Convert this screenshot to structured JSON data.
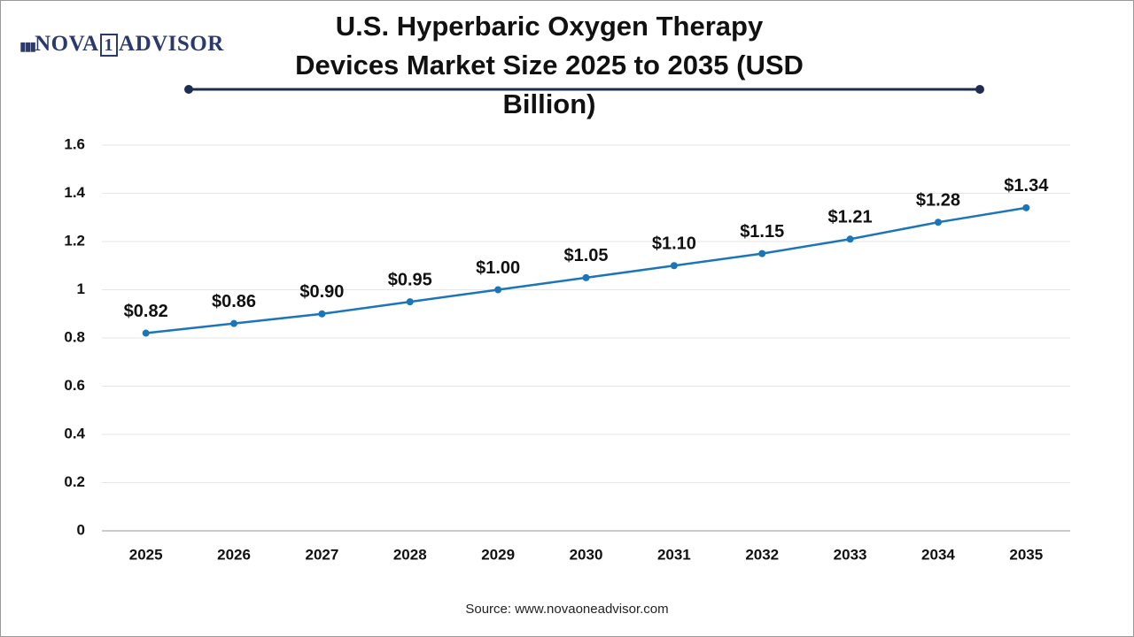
{
  "logo": {
    "left": "NOVA",
    "mid": "1",
    "right": "ADVISOR"
  },
  "chart_data": {
    "type": "line",
    "title": "U.S. Hyperbaric Oxygen Therapy Devices Market Size 2025 to 2035 (USD Billion)",
    "categories": [
      "2025",
      "2026",
      "2027",
      "2028",
      "2029",
      "2030",
      "2031",
      "2032",
      "2033",
      "2034",
      "2035"
    ],
    "values": [
      0.82,
      0.86,
      0.9,
      0.95,
      1.0,
      1.05,
      1.1,
      1.15,
      1.21,
      1.28,
      1.34
    ],
    "value_labels": [
      "$0.82",
      "$0.86",
      "$0.90",
      "$0.95",
      "$1.00",
      "$1.05",
      "$1.10",
      "$1.15",
      "$1.21",
      "$1.28",
      "$1.34"
    ],
    "color": "#1b75b9",
    "ylim": [
      0,
      1.6
    ],
    "yticks": [
      0,
      0.2,
      0.4,
      0.6,
      0.8,
      1,
      1.2,
      1.4,
      1.6
    ],
    "grid": true,
    "source": "Source: www.novaoneadvisor.com"
  }
}
